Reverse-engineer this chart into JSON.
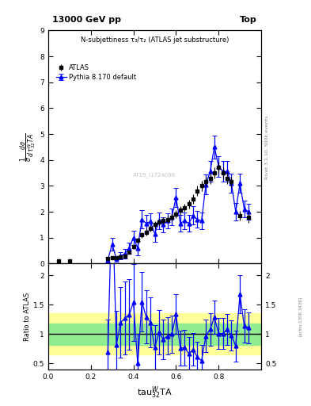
{
  "title_left": "13000 GeV pp",
  "title_right": "Top",
  "plot_title": "N-subjettiness τ₃/τ₂ (ATLAS jet substructure)",
  "ylabel_ratio": "Ratio to ATLAS",
  "xlabel": "tau₃₂ʷTA",
  "rivet_label": "Rivet 3.1.10, 500k events",
  "arxiv_label": "[arXiv:1306.3436]",
  "watermark": "AT19_I1724098",
  "atlas_x": [
    0.05,
    0.1,
    0.28,
    0.3,
    0.32,
    0.34,
    0.36,
    0.38,
    0.4,
    0.42,
    0.44,
    0.46,
    0.48,
    0.5,
    0.52,
    0.54,
    0.56,
    0.58,
    0.6,
    0.62,
    0.64,
    0.66,
    0.68,
    0.7,
    0.72,
    0.74,
    0.76,
    0.78,
    0.8,
    0.82,
    0.84,
    0.86,
    0.9,
    0.94
  ],
  "atlas_y": [
    0.1,
    0.1,
    0.2,
    0.22,
    0.22,
    0.25,
    0.3,
    0.45,
    0.65,
    0.9,
    1.1,
    1.2,
    1.35,
    1.5,
    1.6,
    1.65,
    1.7,
    1.8,
    1.9,
    2.05,
    2.15,
    2.3,
    2.5,
    2.8,
    3.0,
    3.15,
    3.3,
    3.5,
    3.7,
    3.5,
    3.3,
    3.15,
    1.85,
    1.8
  ],
  "atlas_yerr": [
    0.02,
    0.02,
    0.03,
    0.03,
    0.03,
    0.04,
    0.05,
    0.06,
    0.08,
    0.1,
    0.1,
    0.12,
    0.12,
    0.13,
    0.13,
    0.13,
    0.14,
    0.14,
    0.15,
    0.16,
    0.16,
    0.17,
    0.18,
    0.2,
    0.2,
    0.2,
    0.22,
    0.22,
    0.22,
    0.22,
    0.22,
    0.2,
    0.18,
    0.22
  ],
  "pythia_x": [
    0.28,
    0.3,
    0.32,
    0.34,
    0.36,
    0.38,
    0.4,
    0.42,
    0.44,
    0.46,
    0.48,
    0.5,
    0.52,
    0.54,
    0.56,
    0.58,
    0.6,
    0.62,
    0.64,
    0.66,
    0.68,
    0.7,
    0.72,
    0.74,
    0.76,
    0.78,
    0.8,
    0.82,
    0.84,
    0.86,
    0.88,
    0.9,
    0.92,
    0.94
  ],
  "pythia_y": [
    0.14,
    0.75,
    0.18,
    0.3,
    0.38,
    0.6,
    1.0,
    0.6,
    1.7,
    1.55,
    1.62,
    1.15,
    1.65,
    1.5,
    1.65,
    1.8,
    2.55,
    1.55,
    1.65,
    1.55,
    1.85,
    1.7,
    1.65,
    3.05,
    3.55,
    4.5,
    3.75,
    3.55,
    3.55,
    3.1,
    2.0,
    3.1,
    2.1,
    2.0
  ],
  "pythia_yerr": [
    0.1,
    0.25,
    0.12,
    0.15,
    0.18,
    0.22,
    0.28,
    0.28,
    0.35,
    0.33,
    0.33,
    0.3,
    0.32,
    0.3,
    0.3,
    0.32,
    0.38,
    0.32,
    0.32,
    0.32,
    0.35,
    0.32,
    0.32,
    0.38,
    0.4,
    0.45,
    0.4,
    0.4,
    0.4,
    0.38,
    0.35,
    0.38,
    0.32,
    0.3
  ],
  "ratio_x": [
    0.28,
    0.3,
    0.32,
    0.34,
    0.36,
    0.38,
    0.4,
    0.42,
    0.44,
    0.46,
    0.48,
    0.5,
    0.52,
    0.54,
    0.56,
    0.58,
    0.6,
    0.62,
    0.64,
    0.66,
    0.68,
    0.7,
    0.72,
    0.74,
    0.76,
    0.78,
    0.8,
    0.82,
    0.84,
    0.86,
    0.88,
    0.9,
    0.92,
    0.94
  ],
  "ratio_y": [
    0.7,
    3.4,
    0.82,
    1.2,
    1.27,
    1.33,
    1.54,
    0.5,
    1.55,
    1.29,
    1.2,
    0.77,
    1.03,
    0.91,
    0.97,
    1.0,
    1.34,
    0.76,
    0.77,
    0.67,
    0.74,
    0.61,
    0.55,
    0.97,
    1.08,
    1.29,
    1.01,
    1.01,
    1.08,
    0.98,
    0.8,
    1.68,
    1.14,
    1.11
  ],
  "ratio_yerr": [
    0.55,
    1.2,
    0.58,
    0.6,
    0.62,
    0.6,
    0.65,
    0.5,
    0.5,
    0.45,
    0.42,
    0.38,
    0.38,
    0.34,
    0.32,
    0.32,
    0.34,
    0.3,
    0.3,
    0.28,
    0.28,
    0.26,
    0.26,
    0.28,
    0.28,
    0.28,
    0.26,
    0.26,
    0.26,
    0.26,
    0.26,
    0.32,
    0.28,
    0.26
  ],
  "yellow_ylow": 0.65,
  "yellow_yhigh": 1.35,
  "green_ylow": 0.82,
  "green_yhigh": 1.18,
  "ylim_main": [
    0,
    9
  ],
  "ylim_ratio": [
    0.4,
    2.2
  ],
  "xlim": [
    0,
    1.0
  ],
  "atlas_color": "black",
  "pythia_color": "blue",
  "green_color": "#90EE90",
  "yellow_color": "#FFFF99"
}
